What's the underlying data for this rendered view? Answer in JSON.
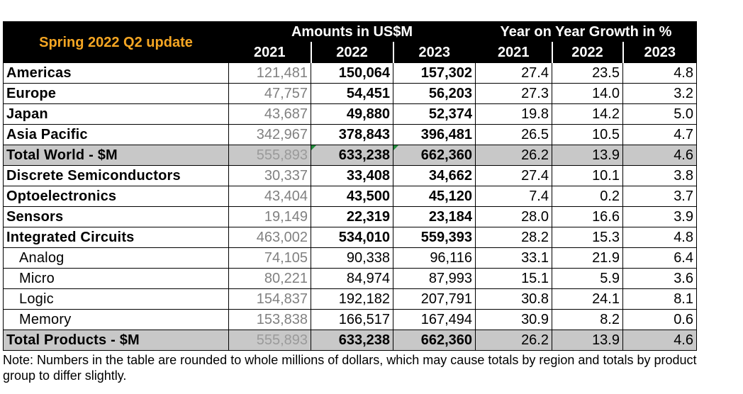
{
  "chart_data": {
    "type": "table",
    "corner_label": "Spring 2022 Q2 update",
    "group_headers": [
      "Amounts in US$M",
      "Year on Year Growth in %"
    ],
    "years": [
      "2021",
      "2022",
      "2023"
    ],
    "rows": [
      {
        "label": "Americas",
        "amounts": [
          "121,481",
          "150,064",
          "157,302"
        ],
        "growth": [
          "27.4",
          "23.5",
          "4.8"
        ]
      },
      {
        "label": "Europe",
        "amounts": [
          "47,757",
          "54,451",
          "56,203"
        ],
        "growth": [
          "27.3",
          "14.0",
          "3.2"
        ]
      },
      {
        "label": "Japan",
        "amounts": [
          "43,687",
          "49,880",
          "52,374"
        ],
        "growth": [
          "19.8",
          "14.2",
          "5.0"
        ]
      },
      {
        "label": "Asia Pacific",
        "amounts": [
          "342,967",
          "378,843",
          "396,481"
        ],
        "growth": [
          "26.5",
          "10.5",
          "4.7"
        ]
      },
      {
        "label": "Total World - $M",
        "amounts": [
          "555,893",
          "633,238",
          "662,360"
        ],
        "growth": [
          "26.2",
          "13.9",
          "4.6"
        ]
      },
      {
        "label": "Discrete Semiconductors",
        "amounts": [
          "30,337",
          "33,408",
          "34,662"
        ],
        "growth": [
          "27.4",
          "10.1",
          "3.8"
        ]
      },
      {
        "label": "Optoelectronics",
        "amounts": [
          "43,404",
          "43,500",
          "45,120"
        ],
        "growth": [
          "7.4",
          "0.2",
          "3.7"
        ]
      },
      {
        "label": "Sensors",
        "amounts": [
          "19,149",
          "22,319",
          "23,184"
        ],
        "growth": [
          "28.0",
          "16.6",
          "3.9"
        ]
      },
      {
        "label": "Integrated Circuits",
        "amounts": [
          "463,002",
          "534,010",
          "559,393"
        ],
        "growth": [
          "28.2",
          "15.3",
          "4.8"
        ]
      },
      {
        "label": "Analog",
        "amounts": [
          "74,105",
          "90,338",
          "96,116"
        ],
        "growth": [
          "33.1",
          "21.9",
          "6.4"
        ]
      },
      {
        "label": "Micro",
        "amounts": [
          "80,221",
          "84,974",
          "87,993"
        ],
        "growth": [
          "15.1",
          "5.9",
          "3.6"
        ]
      },
      {
        "label": "Logic",
        "amounts": [
          "154,837",
          "192,182",
          "207,791"
        ],
        "growth": [
          "30.8",
          "24.1",
          "8.1"
        ]
      },
      {
        "label": "Memory",
        "amounts": [
          "153,838",
          "166,517",
          "167,494"
        ],
        "growth": [
          "30.9",
          "8.2",
          "0.6"
        ]
      },
      {
        "label": "Total Products - $M",
        "amounts": [
          "555,893",
          "633,238",
          "662,360"
        ],
        "growth": [
          "26.2",
          "13.9",
          "4.6"
        ]
      }
    ]
  },
  "note": "Note: Numbers in the table are rounded to whole millions of dollars, which may cause totals by region and totals by product group to differ slightly.",
  "colors": {
    "header_bg": "#000000",
    "corner_text": "#f5a623",
    "total_row_bg": "#c8c8c8",
    "muted_2021": "#808080",
    "cell_marker": "#1f8a3a"
  }
}
